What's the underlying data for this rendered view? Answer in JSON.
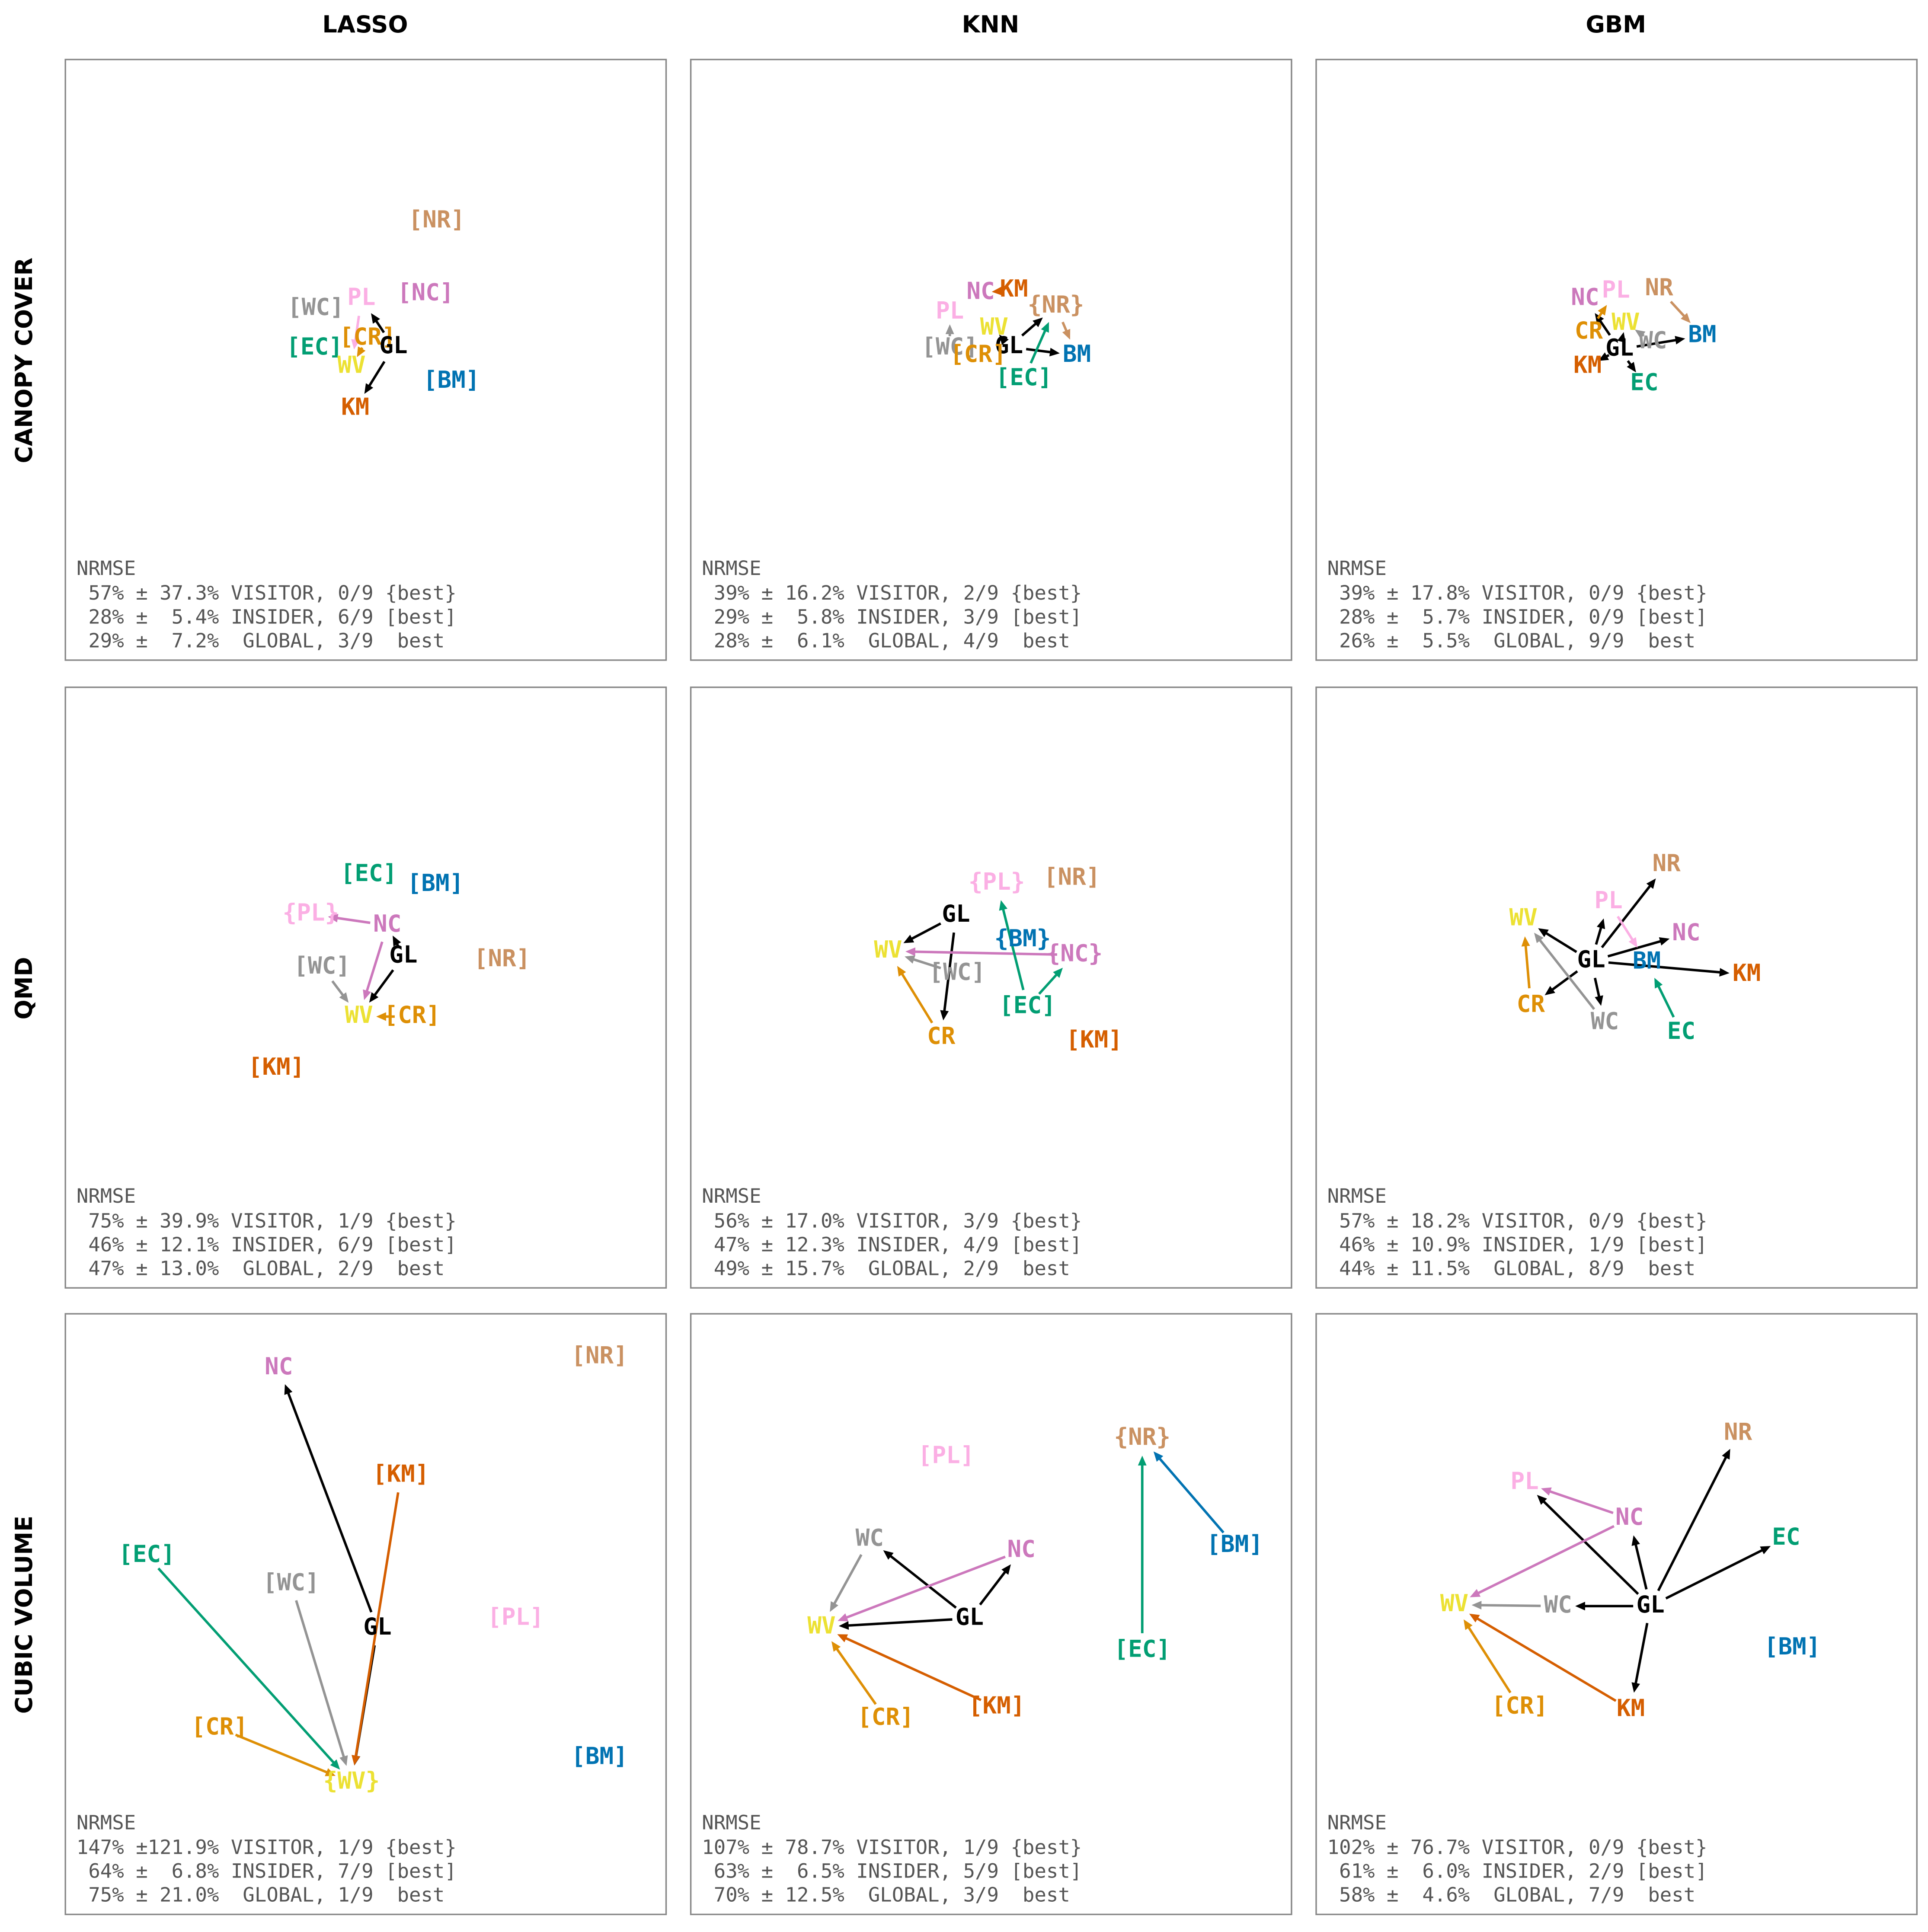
{
  "columns": [
    "LASSO",
    "KNN",
    "GBM"
  ],
  "rows": [
    "CANOPY COVER",
    "QMD",
    "CUBIC VOLUME"
  ],
  "panels": [
    {
      "nodes": [
        {
          "label": "[NR]",
          "color": "#ca9161"
        },
        {
          "label": "[NC]",
          "color": "#cc78bc"
        },
        {
          "label": "PL",
          "color": "#fbafe4"
        },
        {
          "label": "[WC]",
          "color": "#949494"
        },
        {
          "label": "[CR]",
          "color": "#de8f05"
        },
        {
          "label": "[EC]",
          "color": "#029e73"
        },
        {
          "label": "GL",
          "color": "#000000"
        },
        {
          "label": "WV",
          "color": "#ece133"
        },
        {
          "label": "[BM]",
          "color": "#0173b2"
        },
        {
          "label": "KM",
          "color": "#d55e00"
        }
      ],
      "edges": [
        [
          6,
          2
        ],
        [
          6,
          9
        ],
        [
          4,
          7
        ],
        [
          2,
          7
        ]
      ],
      "metric": "NRMSE",
      "lines": [
        " 57% ± 37.3% VISITOR, 0/9 {best}",
        " 28% ±  5.4% INSIDER, 6/9 [best]",
        " 29% ±  7.2%  GLOBAL, 3/9  best"
      ]
    },
    {
      "nodes": [
        {
          "label": "NC",
          "color": "#cc78bc"
        },
        {
          "label": "KM",
          "color": "#d55e00"
        },
        {
          "label": "{NR}",
          "color": "#ca9161"
        },
        {
          "label": "PL",
          "color": "#fbafe4"
        },
        {
          "label": "WV",
          "color": "#ece133"
        },
        {
          "label": "GL",
          "color": "#000000"
        },
        {
          "label": "[WC]",
          "color": "#949494"
        },
        {
          "label": "[CR]",
          "color": "#de8f05"
        },
        {
          "label": "BM",
          "color": "#0173b2"
        },
        {
          "label": "[EC]",
          "color": "#029e73"
        }
      ],
      "edges": [
        [
          5,
          4
        ],
        [
          5,
          2
        ],
        [
          5,
          8
        ],
        [
          9,
          2
        ],
        [
          2,
          8
        ],
        [
          1,
          0
        ],
        [
          6,
          3
        ]
      ],
      "metric": "NRMSE",
      "lines": [
        " 39% ± 16.2% VISITOR, 2/9 {best}",
        " 29% ±  5.8% INSIDER, 3/9 [best]",
        " 28% ±  6.1%  GLOBAL, 4/9  best"
      ]
    },
    {
      "nodes": [
        {
          "label": "NC",
          "color": "#cc78bc"
        },
        {
          "label": "PL",
          "color": "#fbafe4"
        },
        {
          "label": "NR",
          "color": "#ca9161"
        },
        {
          "label": "CR",
          "color": "#de8f05"
        },
        {
          "label": "WV",
          "color": "#ece133"
        },
        {
          "label": "WC",
          "color": "#949494"
        },
        {
          "label": "BM",
          "color": "#0173b2"
        },
        {
          "label": "GL",
          "color": "#000000"
        },
        {
          "label": "KM",
          "color": "#d55e00"
        },
        {
          "label": "EC",
          "color": "#029e73"
        }
      ],
      "edges": [
        [
          7,
          6
        ],
        [
          7,
          4
        ],
        [
          7,
          8
        ],
        [
          7,
          0
        ],
        [
          7,
          9
        ],
        [
          2,
          6
        ],
        [
          5,
          4
        ],
        [
          3,
          1
        ]
      ],
      "metric": "NRMSE",
      "lines": [
        " 39% ± 17.8% VISITOR, 0/9 {best}",
        " 28% ±  5.7% INSIDER, 0/9 [best]",
        " 26% ±  5.5%  GLOBAL, 9/9  best"
      ]
    },
    {
      "nodes": [
        {
          "label": "[EC]",
          "color": "#029e73"
        },
        {
          "label": "[BM]",
          "color": "#0173b2"
        },
        {
          "label": "{PL}",
          "color": "#fbafe4"
        },
        {
          "label": "NC",
          "color": "#cc78bc"
        },
        {
          "label": "GL",
          "color": "#000000"
        },
        {
          "label": "[WC]",
          "color": "#949494"
        },
        {
          "label": "[NR]",
          "color": "#ca9161"
        },
        {
          "label": "WV",
          "color": "#ece133"
        },
        {
          "label": "[CR]",
          "color": "#de8f05"
        },
        {
          "label": "[KM]",
          "color": "#d55e00"
        }
      ],
      "edges": [
        [
          4,
          3
        ],
        [
          4,
          7
        ],
        [
          3,
          2
        ],
        [
          3,
          7
        ],
        [
          5,
          7
        ],
        [
          8,
          7
        ]
      ],
      "metric": "NRMSE",
      "lines": [
        " 75% ± 39.9% VISITOR, 1/9 {best}",
        " 46% ± 12.1% INSIDER, 6/9 [best]",
        " 47% ± 13.0%  GLOBAL, 2/9  best"
      ]
    },
    {
      "nodes": [
        {
          "label": "{PL}",
          "color": "#fbafe4"
        },
        {
          "label": "[NR]",
          "color": "#ca9161"
        },
        {
          "label": "GL",
          "color": "#000000"
        },
        {
          "label": "{BM}",
          "color": "#0173b2"
        },
        {
          "label": "WV",
          "color": "#ece133"
        },
        {
          "label": "{NC}",
          "color": "#cc78bc"
        },
        {
          "label": "[WC]",
          "color": "#949494"
        },
        {
          "label": "[EC]",
          "color": "#029e73"
        },
        {
          "label": "CR",
          "color": "#de8f05"
        },
        {
          "label": "[KM]",
          "color": "#d55e00"
        }
      ],
      "edges": [
        [
          2,
          4
        ],
        [
          2,
          8
        ],
        [
          5,
          4
        ],
        [
          7,
          0
        ],
        [
          7,
          5
        ],
        [
          6,
          4
        ],
        [
          8,
          4
        ]
      ],
      "metric": "NRMSE",
      "lines": [
        " 56% ± 17.0% VISITOR, 3/9 {best}",
        " 47% ± 12.3% INSIDER, 4/9 [best]",
        " 49% ± 15.7%  GLOBAL, 2/9  best"
      ]
    },
    {
      "nodes": [
        {
          "label": "NR",
          "color": "#ca9161"
        },
        {
          "label": "PL",
          "color": "#fbafe4"
        },
        {
          "label": "WV",
          "color": "#ece133"
        },
        {
          "label": "NC",
          "color": "#cc78bc"
        },
        {
          "label": "GL",
          "color": "#000000"
        },
        {
          "label": "BM",
          "color": "#0173b2"
        },
        {
          "label": "KM",
          "color": "#d55e00"
        },
        {
          "label": "CR",
          "color": "#de8f05"
        },
        {
          "label": "WC",
          "color": "#949494"
        },
        {
          "label": "EC",
          "color": "#029e73"
        }
      ],
      "edges": [
        [
          4,
          2
        ],
        [
          4,
          1
        ],
        [
          4,
          0
        ],
        [
          4,
          3
        ],
        [
          4,
          6
        ],
        [
          4,
          7
        ],
        [
          4,
          8
        ],
        [
          7,
          2
        ],
        [
          9,
          5
        ],
        [
          8,
          2
        ],
        [
          1,
          5
        ]
      ],
      "metric": "NRMSE",
      "lines": [
        " 57% ± 18.2% VISITOR, 0/9 {best}",
        " 46% ± 10.9% INSIDER, 1/9 [best]",
        " 44% ± 11.5%  GLOBAL, 8/9  best"
      ]
    },
    {
      "nodes": [
        {
          "label": "NC",
          "color": "#cc78bc"
        },
        {
          "label": "[NR]",
          "color": "#ca9161"
        },
        {
          "label": "[KM]",
          "color": "#d55e00"
        },
        {
          "label": "[EC]",
          "color": "#029e73"
        },
        {
          "label": "[WC]",
          "color": "#949494"
        },
        {
          "label": "GL",
          "color": "#000000"
        },
        {
          "label": "[PL]",
          "color": "#fbafe4"
        },
        {
          "label": "[CR]",
          "color": "#de8f05"
        },
        {
          "label": "[BM]",
          "color": "#0173b2"
        },
        {
          "label": "{WV}",
          "color": "#ece133"
        }
      ],
      "edges": [
        [
          5,
          0
        ],
        [
          5,
          9
        ],
        [
          2,
          9
        ],
        [
          3,
          9
        ],
        [
          4,
          9
        ],
        [
          7,
          9
        ]
      ],
      "metric": "NRMSE",
      "lines": [
        "147% ±121.9% VISITOR, 1/9 {best}",
        " 64% ±  6.8% INSIDER, 7/9 [best]",
        " 75% ± 21.0%  GLOBAL, 1/9  best"
      ]
    },
    {
      "nodes": [
        {
          "label": "{NR}",
          "color": "#ca9161"
        },
        {
          "label": "[PL]",
          "color": "#fbafe4"
        },
        {
          "label": "[BM]",
          "color": "#0173b2"
        },
        {
          "label": "WC",
          "color": "#949494"
        },
        {
          "label": "NC",
          "color": "#cc78bc"
        },
        {
          "label": "GL",
          "color": "#000000"
        },
        {
          "label": "WV",
          "color": "#ece133"
        },
        {
          "label": "[EC]",
          "color": "#029e73"
        },
        {
          "label": "[KM]",
          "color": "#d55e00"
        },
        {
          "label": "[CR]",
          "color": "#de8f05"
        }
      ],
      "edges": [
        [
          5,
          3
        ],
        [
          5,
          4
        ],
        [
          5,
          6
        ],
        [
          4,
          6
        ],
        [
          3,
          6
        ],
        [
          8,
          6
        ],
        [
          9,
          6
        ],
        [
          7,
          0
        ],
        [
          2,
          0
        ]
      ],
      "metric": "NRMSE",
      "lines": [
        "107% ± 78.7% VISITOR, 1/9 {best}",
        " 63% ±  6.5% INSIDER, 5/9 [best]",
        " 70% ± 12.5%  GLOBAL, 3/9  best"
      ]
    },
    {
      "nodes": [
        {
          "label": "NR",
          "color": "#ca9161"
        },
        {
          "label": "PL",
          "color": "#fbafe4"
        },
        {
          "label": "NC",
          "color": "#cc78bc"
        },
        {
          "label": "EC",
          "color": "#029e73"
        },
        {
          "label": "WV",
          "color": "#ece133"
        },
        {
          "label": "WC",
          "color": "#949494"
        },
        {
          "label": "GL",
          "color": "#000000"
        },
        {
          "label": "[BM]",
          "color": "#0173b2"
        },
        {
          "label": "[CR]",
          "color": "#de8f05"
        },
        {
          "label": "KM",
          "color": "#d55e00"
        }
      ],
      "edges": [
        [
          6,
          0
        ],
        [
          6,
          3
        ],
        [
          6,
          2
        ],
        [
          6,
          1
        ],
        [
          6,
          5
        ],
        [
          6,
          9
        ],
        [
          5,
          4
        ],
        [
          2,
          1
        ],
        [
          2,
          4
        ],
        [
          9,
          4
        ],
        [
          8,
          4
        ]
      ],
      "metric": "NRMSE",
      "lines": [
        "102% ± 76.7% VISITOR, 0/9 {best}",
        " 61% ±  6.0% INSIDER, 2/9 [best]",
        " 58% ±  4.6%  GLOBAL, 7/9  best"
      ]
    }
  ]
}
